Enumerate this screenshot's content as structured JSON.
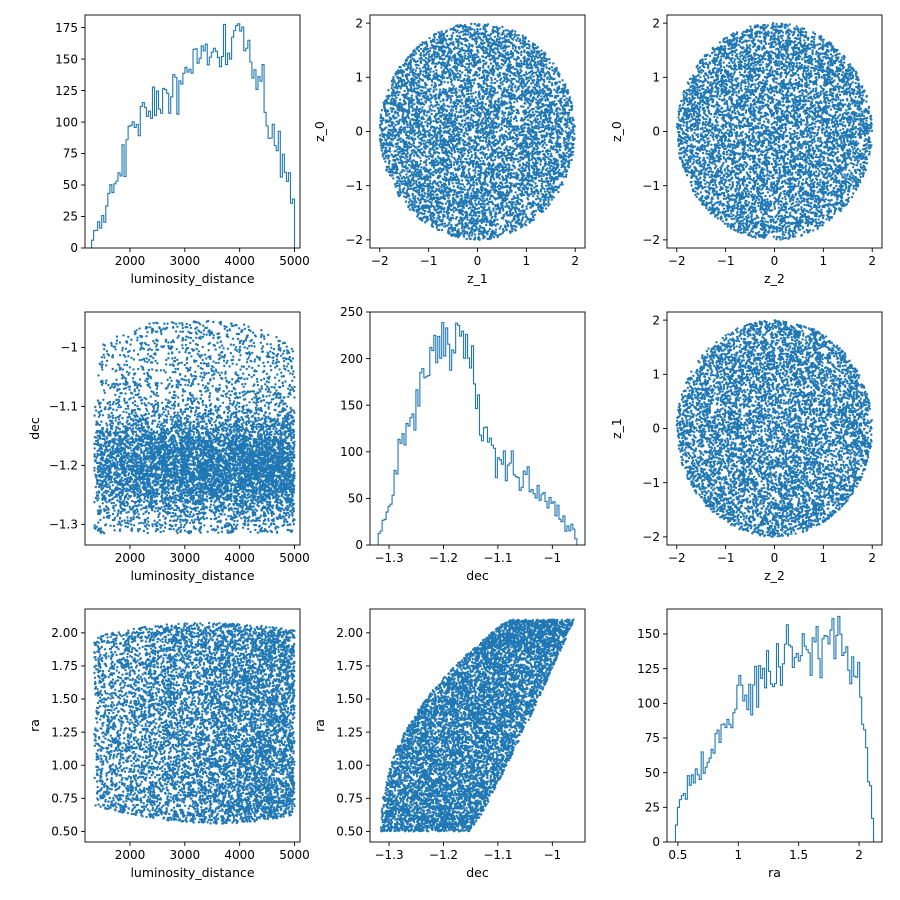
{
  "colors": {
    "series": "#1f77b4",
    "axes": "#000000"
  },
  "chart_data": [
    {
      "type": "histogram",
      "xlabel": "luminosity_distance",
      "ylabel": "",
      "xlim": [
        1180,
        5100
      ],
      "ylim": [
        0,
        185
      ],
      "xticks": [
        2000,
        3000,
        4000,
        5000
      ],
      "yticks": [
        0,
        25,
        50,
        75,
        100,
        125,
        150,
        175
      ],
      "bin_range": [
        1300,
        5000
      ],
      "bins": 100,
      "profile_x": [
        1300,
        1500,
        1800,
        2000,
        2500,
        3000,
        3500,
        3900,
        4000,
        4300,
        4600,
        4800,
        4950,
        5000
      ],
      "profile_y": [
        3,
        25,
        65,
        88,
        118,
        138,
        150,
        158,
        160,
        140,
        95,
        60,
        35,
        30
      ],
      "peak": [
        3990,
        178
      ]
    },
    {
      "type": "scatter",
      "xlabel": "z_1",
      "ylabel": "z_0",
      "xlim": [
        -2.2,
        2.2
      ],
      "ylim": [
        -2.15,
        2.15
      ],
      "xticks": [
        -2,
        -1,
        0,
        1,
        2
      ],
      "yticks": [
        -2,
        -1,
        0,
        1,
        2
      ],
      "shape": "disk",
      "center": [
        0,
        0
      ],
      "radius": 2.0,
      "n_points": 7000
    },
    {
      "type": "scatter",
      "xlabel": "z_2",
      "ylabel": "z_0",
      "xlim": [
        -2.2,
        2.2
      ],
      "ylim": [
        -2.15,
        2.15
      ],
      "xticks": [
        -2,
        -1,
        0,
        1,
        2
      ],
      "yticks": [
        -2,
        -1,
        0,
        1,
        2
      ],
      "shape": "disk",
      "center": [
        0,
        0
      ],
      "radius": 2.0,
      "n_points": 7000
    },
    {
      "type": "scatter",
      "xlabel": "luminosity_distance",
      "ylabel": "dec",
      "xlim": [
        1180,
        5100
      ],
      "ylim": [
        -1.335,
        -0.94
      ],
      "xticks": [
        2000,
        3000,
        4000,
        5000
      ],
      "yticks": [
        -1.3,
        -1.2,
        -1.1,
        -1.0
      ],
      "shape": "band",
      "x_range": [
        1350,
        5000
      ],
      "y_range": [
        -1.315,
        -0.955
      ],
      "y_mode": -1.2,
      "n_points": 8000
    },
    {
      "type": "histogram",
      "xlabel": "dec",
      "ylabel": "",
      "xlim": [
        -1.335,
        -0.94
      ],
      "ylim": [
        0,
        250
      ],
      "xticks": [
        -1.3,
        -1.2,
        -1.1,
        -1.0
      ],
      "yticks": [
        0,
        50,
        100,
        150,
        200,
        250
      ],
      "bin_range": [
        -1.32,
        -0.955
      ],
      "bins": 100,
      "profile_x": [
        -1.32,
        -1.3,
        -1.28,
        -1.25,
        -1.22,
        -1.19,
        -1.17,
        -1.15,
        -1.13,
        -1.1,
        -1.05,
        -1.0,
        -0.97,
        -0.955
      ],
      "profile_y": [
        2,
        45,
        95,
        160,
        205,
        225,
        225,
        190,
        130,
        92,
        68,
        45,
        20,
        5
      ],
      "peak": [
        -1.175,
        238
      ]
    },
    {
      "type": "scatter",
      "xlabel": "z_2",
      "ylabel": "z_1",
      "xlim": [
        -2.2,
        2.2
      ],
      "ylim": [
        -2.15,
        2.15
      ],
      "xticks": [
        -2,
        -1,
        0,
        1,
        2
      ],
      "yticks": [
        -2,
        -1,
        0,
        1,
        2
      ],
      "shape": "disk",
      "center": [
        0,
        0
      ],
      "radius": 2.0,
      "n_points": 7000
    },
    {
      "type": "scatter",
      "xlabel": "luminosity_distance",
      "ylabel": "ra",
      "xlim": [
        1180,
        5100
      ],
      "ylim": [
        0.42,
        2.18
      ],
      "xticks": [
        2000,
        3000,
        4000,
        5000
      ],
      "yticks": [
        0.5,
        0.75,
        1.0,
        1.25,
        1.5,
        1.75,
        2.0
      ],
      "ytick_labels": [
        "0.50",
        "0.75",
        "1.00",
        "1.25",
        "1.50",
        "1.75",
        "2.00"
      ],
      "shape": "rounded-block",
      "x_range": [
        1350,
        5000
      ],
      "y_range": [
        0.5,
        2.1
      ],
      "n_points": 8000
    },
    {
      "type": "scatter",
      "xlabel": "dec",
      "ylabel": "ra",
      "xlim": [
        -1.335,
        -0.94
      ],
      "ylim": [
        0.42,
        2.18
      ],
      "xticks": [
        -1.3,
        -1.2,
        -1.1,
        -1.0
      ],
      "yticks": [
        0.5,
        0.75,
        1.0,
        1.25,
        1.5,
        1.75,
        2.0
      ],
      "ytick_labels": [
        "0.50",
        "0.75",
        "1.00",
        "1.25",
        "1.50",
        "1.75",
        "2.00"
      ],
      "shape": "crescent",
      "ra_range": [
        0.5,
        2.1
      ],
      "dec_low_edge": -1.315,
      "dec_high_edge": -0.955,
      "n_points": 8000
    },
    {
      "type": "histogram",
      "xlabel": "ra",
      "ylabel": "",
      "xlim": [
        0.41,
        2.19
      ],
      "ylim": [
        0,
        168
      ],
      "xticks": [
        0.5,
        1.0,
        1.5,
        2.0
      ],
      "yticks": [
        0,
        25,
        50,
        75,
        100,
        125,
        150
      ],
      "ytick_labels": [
        "0",
        "25",
        "50",
        "75",
        "100",
        "125",
        "150"
      ],
      "bin_range": [
        0.48,
        2.12
      ],
      "bins": 100,
      "profile_x": [
        0.48,
        0.5,
        0.55,
        0.65,
        0.8,
        1.0,
        1.2,
        1.4,
        1.6,
        1.75,
        1.85,
        1.95,
        2.0,
        2.05,
        2.1,
        2.12
      ],
      "profile_y": [
        10,
        22,
        32,
        45,
        70,
        100,
        118,
        128,
        138,
        148,
        145,
        130,
        118,
        80,
        30,
        5
      ],
      "peak": [
        1.78,
        161
      ]
    }
  ]
}
